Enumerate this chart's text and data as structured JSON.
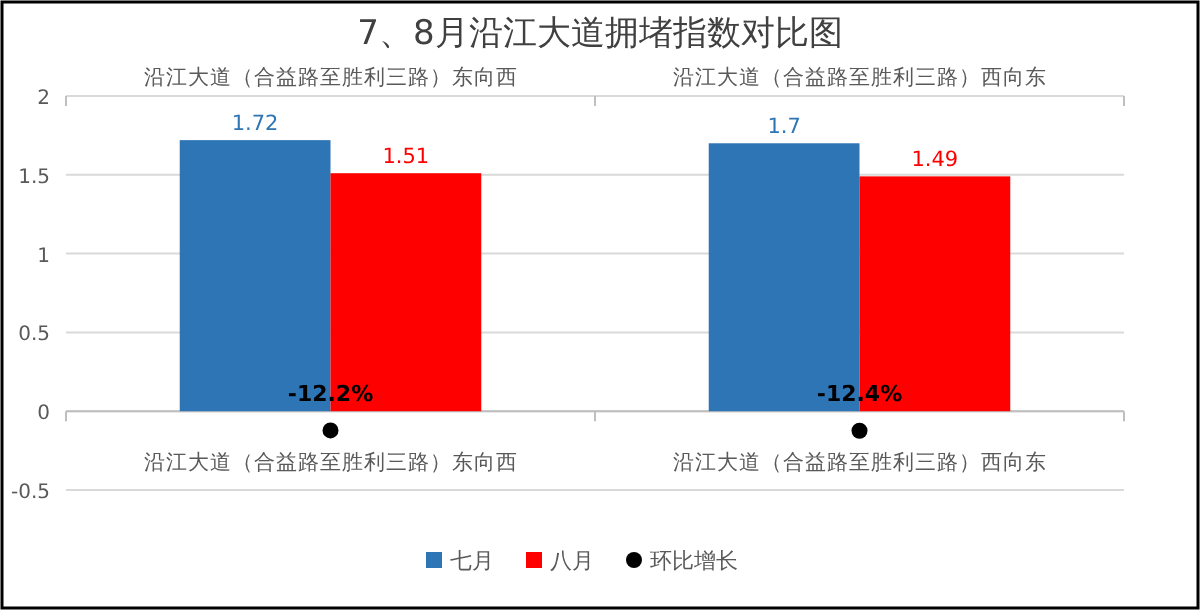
{
  "chart_data": {
    "type": "bar",
    "title": "7、8月沿江大道拥堵指数对比图",
    "categories": [
      "沿江大道（合益路至胜利三路）东向西",
      "沿江大道（合益路至胜利三路）西向东"
    ],
    "series": [
      {
        "name": "七月",
        "color": "#2e75b6",
        "values": [
          1.72,
          1.7
        ],
        "value_labels": [
          "1.72",
          "1.7"
        ]
      },
      {
        "name": "八月",
        "color": "#ff0000",
        "values": [
          1.51,
          1.49
        ],
        "value_labels": [
          "1.51",
          "1.49"
        ]
      },
      {
        "name": "环比增长",
        "type": "scatter",
        "color": "#000000",
        "values": [
          -0.122,
          -0.124
        ],
        "value_labels": [
          "-12.2%",
          "-12.4%"
        ]
      }
    ],
    "ylim": [
      -0.5,
      2
    ],
    "yticks": [
      -0.5,
      0,
      0.5,
      1,
      1.5,
      2
    ],
    "grid": "y",
    "legend": "bottom",
    "marker": "circle"
  }
}
